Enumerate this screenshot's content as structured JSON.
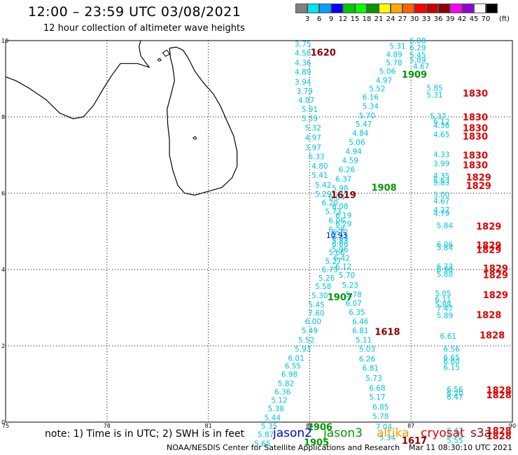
{
  "header": {
    "title": "12:00 – 23:59 UTC 03/08/2021",
    "subtitle": "12 hour collection of altimeter wave heights"
  },
  "scale": {
    "unit": "(ft)",
    "colors": [
      "#808080",
      "#00e5ee",
      "#00a0ff",
      "#0000ff",
      "#00c800",
      "#00ff00",
      "#009600",
      "#ffff00",
      "#ffaa00",
      "#ff6400",
      "#ff0000",
      "#c80000",
      "#8b0000",
      "#ff00ff",
      "#9400d3",
      "#ffffff",
      "#000000"
    ],
    "labels": [
      "3",
      "6",
      "9",
      "12",
      "15",
      "18",
      "21",
      "24",
      "27",
      "30",
      "33",
      "36",
      "39",
      "42",
      "45",
      "70"
    ]
  },
  "axes": {
    "x_ticks": [
      "75",
      "78",
      "81",
      "84",
      "87",
      "90"
    ],
    "y_ticks": [
      "0",
      "2",
      "4",
      "6",
      "8",
      "10"
    ]
  },
  "satellite_colors": {
    "jason2": "#0000cc",
    "jason3": "#009600",
    "altika": "#ff9900",
    "cryosat": "#e00000",
    "s3a": "#8b0000",
    "obs": "#00c4dc"
  },
  "tracks": {
    "track_a": [
      {
        "lon": 83.8,
        "lat": 9.92,
        "v": "3.75"
      },
      {
        "lon": 83.8,
        "lat": 9.68,
        "v": "4.58"
      },
      {
        "lon": 83.8,
        "lat": 9.42,
        "v": "4.36"
      },
      {
        "lon": 83.8,
        "lat": 9.18,
        "v": "4.89"
      },
      {
        "lon": 83.8,
        "lat": 8.92,
        "v": "3.94"
      },
      {
        "lon": 83.85,
        "lat": 8.68,
        "v": "3.79"
      },
      {
        "lon": 83.9,
        "lat": 8.44,
        "v": "4.87"
      },
      {
        "lon": 84.0,
        "lat": 8.2,
        "v": "5.91"
      },
      {
        "lon": 84.0,
        "lat": 7.96,
        "v": "5.59"
      },
      {
        "lon": 84.1,
        "lat": 7.72,
        "v": "5.32"
      },
      {
        "lon": 84.1,
        "lat": 7.46,
        "v": "4.97"
      },
      {
        "lon": 84.1,
        "lat": 7.2,
        "v": "3.97"
      },
      {
        "lon": 84.2,
        "lat": 6.96,
        "v": "6.33"
      },
      {
        "lon": 84.3,
        "lat": 6.72,
        "v": "4.80"
      },
      {
        "lon": 84.3,
        "lat": 6.48,
        "v": "5.41"
      },
      {
        "lon": 84.4,
        "lat": 6.22,
        "v": "5.42"
      },
      {
        "lon": 84.4,
        "lat": 5.98,
        "v": "5.29"
      },
      {
        "lon": 84.6,
        "lat": 5.75,
        "v": "6.20"
      },
      {
        "lon": 84.7,
        "lat": 5.52,
        "v": "5.73"
      },
      {
        "lon": 84.8,
        "lat": 5.28,
        "v": "6.06"
      },
      {
        "lon": 84.8,
        "lat": 5.05,
        "v": "6.28"
      },
      {
        "lon": 84.9,
        "lat": 4.85,
        "v": "6.33"
      },
      {
        "lon": 84.9,
        "lat": 4.68,
        "v": "6.66"
      },
      {
        "lon": 84.8,
        "lat": 4.45,
        "v": "5.66"
      },
      {
        "lon": 84.7,
        "lat": 4.22,
        "v": "5.27"
      },
      {
        "lon": 84.6,
        "lat": 4.0,
        "v": "6.75"
      },
      {
        "lon": 84.5,
        "lat": 3.78,
        "v": "5.26"
      },
      {
        "lon": 84.4,
        "lat": 3.56,
        "v": "5.58"
      },
      {
        "lon": 84.3,
        "lat": 3.32,
        "v": "5.30"
      },
      {
        "lon": 84.2,
        "lat": 3.08,
        "v": "5.45"
      },
      {
        "lon": 84.2,
        "lat": 2.86,
        "v": "7.60"
      },
      {
        "lon": 84.1,
        "lat": 2.64,
        "v": "6.00"
      },
      {
        "lon": 84.0,
        "lat": 2.4,
        "v": "5.49"
      },
      {
        "lon": 83.9,
        "lat": 2.16,
        "v": "5.52"
      },
      {
        "lon": 83.8,
        "lat": 1.92,
        "v": "5.93"
      },
      {
        "lon": 83.6,
        "lat": 1.68,
        "v": "6.01"
      },
      {
        "lon": 83.5,
        "lat": 1.48,
        "v": "6.55"
      },
      {
        "lon": 83.4,
        "lat": 1.26,
        "v": "6.98"
      },
      {
        "lon": 83.3,
        "lat": 1.02,
        "v": "5.82"
      },
      {
        "lon": 83.2,
        "lat": 0.8,
        "v": "6.36"
      },
      {
        "lon": 83.1,
        "lat": 0.58,
        "v": "5.12"
      },
      {
        "lon": 83.0,
        "lat": 0.36,
        "v": "5.38"
      },
      {
        "lon": 82.9,
        "lat": 0.12,
        "v": "5.44"
      },
      {
        "lon": 82.8,
        "lat": -0.1,
        "v": "5.35"
      },
      {
        "lon": 82.7,
        "lat": -0.32,
        "v": "5.87"
      },
      {
        "lon": 82.6,
        "lat": -0.56,
        "v": "5.65"
      }
    ],
    "track_b": [
      {
        "lon": 87.2,
        "lat": 10.0,
        "v": "6.08"
      },
      {
        "lon": 87.2,
        "lat": 9.82,
        "v": "6.29"
      },
      {
        "lon": 86.6,
        "lat": 9.86,
        "v": "5.31"
      },
      {
        "lon": 87.2,
        "lat": 9.62,
        "v": "5.45"
      },
      {
        "lon": 87.2,
        "lat": 9.5,
        "v": "5.89"
      },
      {
        "lon": 86.5,
        "lat": 9.64,
        "v": "4.89"
      },
      {
        "lon": 87.3,
        "lat": 9.33,
        "v": "4.67"
      },
      {
        "lon": 86.5,
        "lat": 9.42,
        "v": "5.78"
      },
      {
        "lon": 86.3,
        "lat": 9.2,
        "v": "5.06"
      },
      {
        "lon": 86.2,
        "lat": 8.96,
        "v": "4.97"
      },
      {
        "lon": 86.0,
        "lat": 8.74,
        "v": "5.52"
      },
      {
        "lon": 85.8,
        "lat": 8.52,
        "v": "6.16"
      },
      {
        "lon": 85.8,
        "lat": 8.28,
        "v": "5.34"
      },
      {
        "lon": 85.7,
        "lat": 8.04,
        "v": "5.70"
      },
      {
        "lon": 85.6,
        "lat": 7.82,
        "v": "5.47"
      },
      {
        "lon": 85.5,
        "lat": 7.58,
        "v": "4.84"
      },
      {
        "lon": 85.4,
        "lat": 7.34,
        "v": "5.06"
      },
      {
        "lon": 85.3,
        "lat": 7.1,
        "v": "4.94"
      },
      {
        "lon": 85.2,
        "lat": 6.86,
        "v": "4.59"
      },
      {
        "lon": 85.1,
        "lat": 6.62,
        "v": "6.26"
      },
      {
        "lon": 85.0,
        "lat": 6.38,
        "v": "6.37"
      },
      {
        "lon": 84.9,
        "lat": 6.14,
        "v": "5.98"
      },
      {
        "lon": 84.8,
        "lat": 5.9,
        "v": "6.04"
      },
      {
        "lon": 84.9,
        "lat": 5.66,
        "v": "6.08"
      },
      {
        "lon": 85.0,
        "lat": 5.42,
        "v": "6.19"
      },
      {
        "lon": 85.0,
        "lat": 5.2,
        "v": "6.29"
      },
      {
        "lon": 84.9,
        "lat": 4.98,
        "v": "6.72"
      },
      {
        "lon": 84.9,
        "lat": 4.75,
        "v": "5.83"
      },
      {
        "lon": 84.9,
        "lat": 4.53,
        "v": "5.96"
      },
      {
        "lon": 84.95,
        "lat": 4.3,
        "v": "6.42"
      },
      {
        "lon": 85.0,
        "lat": 4.08,
        "v": "6.12"
      },
      {
        "lon": 85.1,
        "lat": 3.85,
        "v": "5.70"
      },
      {
        "lon": 85.2,
        "lat": 3.6,
        "v": "5.23"
      },
      {
        "lon": 85.3,
        "lat": 3.35,
        "v": "5.78"
      },
      {
        "lon": 85.3,
        "lat": 3.12,
        "v": "6.07"
      },
      {
        "lon": 85.4,
        "lat": 2.88,
        "v": "6.35"
      },
      {
        "lon": 85.5,
        "lat": 2.64,
        "v": "6.46"
      },
      {
        "lon": 85.5,
        "lat": 2.4,
        "v": "6.81"
      },
      {
        "lon": 85.6,
        "lat": 2.16,
        "v": "5.11"
      },
      {
        "lon": 85.7,
        "lat": 1.92,
        "v": "5.03"
      },
      {
        "lon": 85.7,
        "lat": 1.66,
        "v": "6.26"
      },
      {
        "lon": 85.8,
        "lat": 1.42,
        "v": "6.81"
      },
      {
        "lon": 85.9,
        "lat": 1.16,
        "v": "5.73"
      },
      {
        "lon": 86.0,
        "lat": 0.9,
        "v": "6.68"
      },
      {
        "lon": 86.0,
        "lat": 0.66,
        "v": "5.17"
      },
      {
        "lon": 86.1,
        "lat": 0.4,
        "v": "6.85"
      },
      {
        "lon": 86.1,
        "lat": 0.16,
        "v": "5.78"
      },
      {
        "lon": 86.2,
        "lat": -0.12,
        "v": "7.04"
      },
      {
        "lon": 86.3,
        "lat": -0.4,
        "v": "5.34"
      }
    ],
    "track_c": [
      {
        "lon": 87.7,
        "lat": 8.76,
        "v": "5.85"
      },
      {
        "lon": 87.7,
        "lat": 8.58,
        "v": "5.31"
      },
      {
        "lon": 87.8,
        "lat": 8.02,
        "v": "5.37"
      },
      {
        "lon": 87.9,
        "lat": 7.88,
        "v": "6.12"
      },
      {
        "lon": 87.9,
        "lat": 7.78,
        "v": "4.36"
      },
      {
        "lon": 87.9,
        "lat": 7.54,
        "v": "4.65"
      },
      {
        "lon": 87.9,
        "lat": 7.02,
        "v": "4.33"
      },
      {
        "lon": 87.9,
        "lat": 6.78,
        "v": "3.99"
      },
      {
        "lon": 87.9,
        "lat": 6.46,
        "v": "4.35"
      },
      {
        "lon": 87.9,
        "lat": 6.34,
        "v": "5.63"
      },
      {
        "lon": 87.9,
        "lat": 6.28,
        "v": "5.83"
      },
      {
        "lon": 87.9,
        "lat": 5.96,
        "v": "5.00"
      },
      {
        "lon": 87.9,
        "lat": 5.8,
        "v": "4.67"
      },
      {
        "lon": 87.9,
        "lat": 5.56,
        "v": "4.27"
      },
      {
        "lon": 87.9,
        "lat": 5.48,
        "v": "4.79"
      },
      {
        "lon": 88.0,
        "lat": 5.16,
        "v": "5.84"
      },
      {
        "lon": 88.0,
        "lat": 4.66,
        "v": "6.06"
      },
      {
        "lon": 88.0,
        "lat": 4.58,
        "v": "5.84"
      },
      {
        "lon": 88.0,
        "lat": 4.08,
        "v": "6.73"
      },
      {
        "lon": 88.0,
        "lat": 4.0,
        "v": "6.90"
      },
      {
        "lon": 88.0,
        "lat": 3.88,
        "v": "5.88"
      },
      {
        "lon": 87.95,
        "lat": 3.38,
        "v": "5.05"
      },
      {
        "lon": 87.95,
        "lat": 3.22,
        "v": "6.11"
      },
      {
        "lon": 87.95,
        "lat": 3.08,
        "v": "5.88"
      },
      {
        "lon": 88.0,
        "lat": 2.98,
        "v": "7.47"
      },
      {
        "lon": 88.0,
        "lat": 2.8,
        "v": "5.89"
      },
      {
        "lon": 88.1,
        "lat": 2.26,
        "v": "6.61"
      },
      {
        "lon": 88.2,
        "lat": 1.92,
        "v": "6.56"
      },
      {
        "lon": 88.2,
        "lat": 1.7,
        "v": "6.65"
      },
      {
        "lon": 88.2,
        "lat": 1.6,
        "v": "6.60"
      },
      {
        "lon": 88.2,
        "lat": 1.44,
        "v": "6.15"
      },
      {
        "lon": 88.3,
        "lat": 0.86,
        "v": "6.56"
      },
      {
        "lon": 88.3,
        "lat": 0.76,
        "v": "6.20"
      },
      {
        "lon": 88.3,
        "lat": 0.66,
        "v": "6.47"
      },
      {
        "lon": 88.3,
        "lat": -0.22,
        "v": "6.47"
      },
      {
        "lon": 88.3,
        "lat": -0.36,
        "v": "6.73"
      },
      {
        "lon": 88.3,
        "lat": -0.48,
        "v": "5.55"
      }
    ]
  },
  "time_labels": [
    {
      "lon": 84.4,
      "lat": 9.7,
      "t": "1620",
      "sat": "s3a"
    },
    {
      "lon": 87.1,
      "lat": 9.12,
      "t": "1909",
      "sat": "jason3"
    },
    {
      "lon": 88.9,
      "lat": 8.62,
      "t": "1830",
      "sat": "cryosat"
    },
    {
      "lon": 88.9,
      "lat": 8.0,
      "t": "1830",
      "sat": "cryosat"
    },
    {
      "lon": 88.9,
      "lat": 7.72,
      "t": "1830",
      "sat": "cryosat"
    },
    {
      "lon": 88.9,
      "lat": 7.5,
      "t": "1830",
      "sat": "cryosat"
    },
    {
      "lon": 88.9,
      "lat": 7.0,
      "t": "1830",
      "sat": "cryosat"
    },
    {
      "lon": 88.9,
      "lat": 6.74,
      "t": "1830",
      "sat": "cryosat"
    },
    {
      "lon": 89.0,
      "lat": 6.42,
      "t": "1829",
      "sat": "cryosat"
    },
    {
      "lon": 89.0,
      "lat": 6.2,
      "t": "1829",
      "sat": "cryosat"
    },
    {
      "lon": 86.2,
      "lat": 6.16,
      "t": "1908",
      "sat": "jason3"
    },
    {
      "lon": 85.0,
      "lat": 5.96,
      "t": "1619",
      "sat": "s3a"
    },
    {
      "lon": 89.3,
      "lat": 5.14,
      "t": "1829",
      "sat": "cryosat"
    },
    {
      "lon": 89.3,
      "lat": 4.64,
      "t": "1829",
      "sat": "cryosat"
    },
    {
      "lon": 89.3,
      "lat": 4.52,
      "t": "1829",
      "sat": "cryosat"
    },
    {
      "lon": 89.5,
      "lat": 4.04,
      "t": "1829",
      "sat": "cryosat"
    },
    {
      "lon": 89.5,
      "lat": 3.86,
      "t": "1829",
      "sat": "cryosat"
    },
    {
      "lon": 89.5,
      "lat": 3.34,
      "t": "1829",
      "sat": "cryosat"
    },
    {
      "lon": 84.9,
      "lat": 3.28,
      "t": "1907",
      "sat": "jason3"
    },
    {
      "lon": 89.3,
      "lat": 2.82,
      "t": "1828",
      "sat": "cryosat"
    },
    {
      "lon": 86.3,
      "lat": 2.38,
      "t": "1618",
      "sat": "s3a"
    },
    {
      "lon": 89.4,
      "lat": 2.28,
      "t": "1828",
      "sat": "cryosat"
    },
    {
      "lon": 89.6,
      "lat": 0.84,
      "t": "1828",
      "sat": "cryosat"
    },
    {
      "lon": 89.6,
      "lat": 0.72,
      "t": "1828",
      "sat": "cryosat"
    },
    {
      "lon": 89.6,
      "lat": -0.22,
      "t": "1828",
      "sat": "cryosat"
    },
    {
      "lon": 89.6,
      "lat": -0.36,
      "t": "1828",
      "sat": "cryosat"
    },
    {
      "lon": 84.3,
      "lat": -0.12,
      "t": "1906",
      "sat": "jason3"
    },
    {
      "lon": 84.2,
      "lat": -0.52,
      "t": "1905",
      "sat": "jason3"
    },
    {
      "lon": 87.1,
      "lat": -0.48,
      "t": "1617",
      "sat": "s3a"
    }
  ],
  "special_values": [
    {
      "lon": 84.8,
      "lat": 4.9,
      "v": "10.93",
      "sat": "jason2"
    }
  ],
  "note": "note:  1) Time is in UTC;  2) SWH is in feet",
  "legend": [
    {
      "name": "jason2",
      "sat": "jason2"
    },
    {
      "name": "jason3",
      "sat": "jason3"
    },
    {
      "name": "altika",
      "sat": "altika"
    },
    {
      "name": "cryosat",
      "sat": "cryosat"
    },
    {
      "name": "s3a",
      "sat": "s3a"
    }
  ],
  "footer": {
    "credit": "NOAA/NESDIS Center for Satellite Applications and Research",
    "timestamp": "Mar 11 08:30:10 UTC 2021"
  }
}
